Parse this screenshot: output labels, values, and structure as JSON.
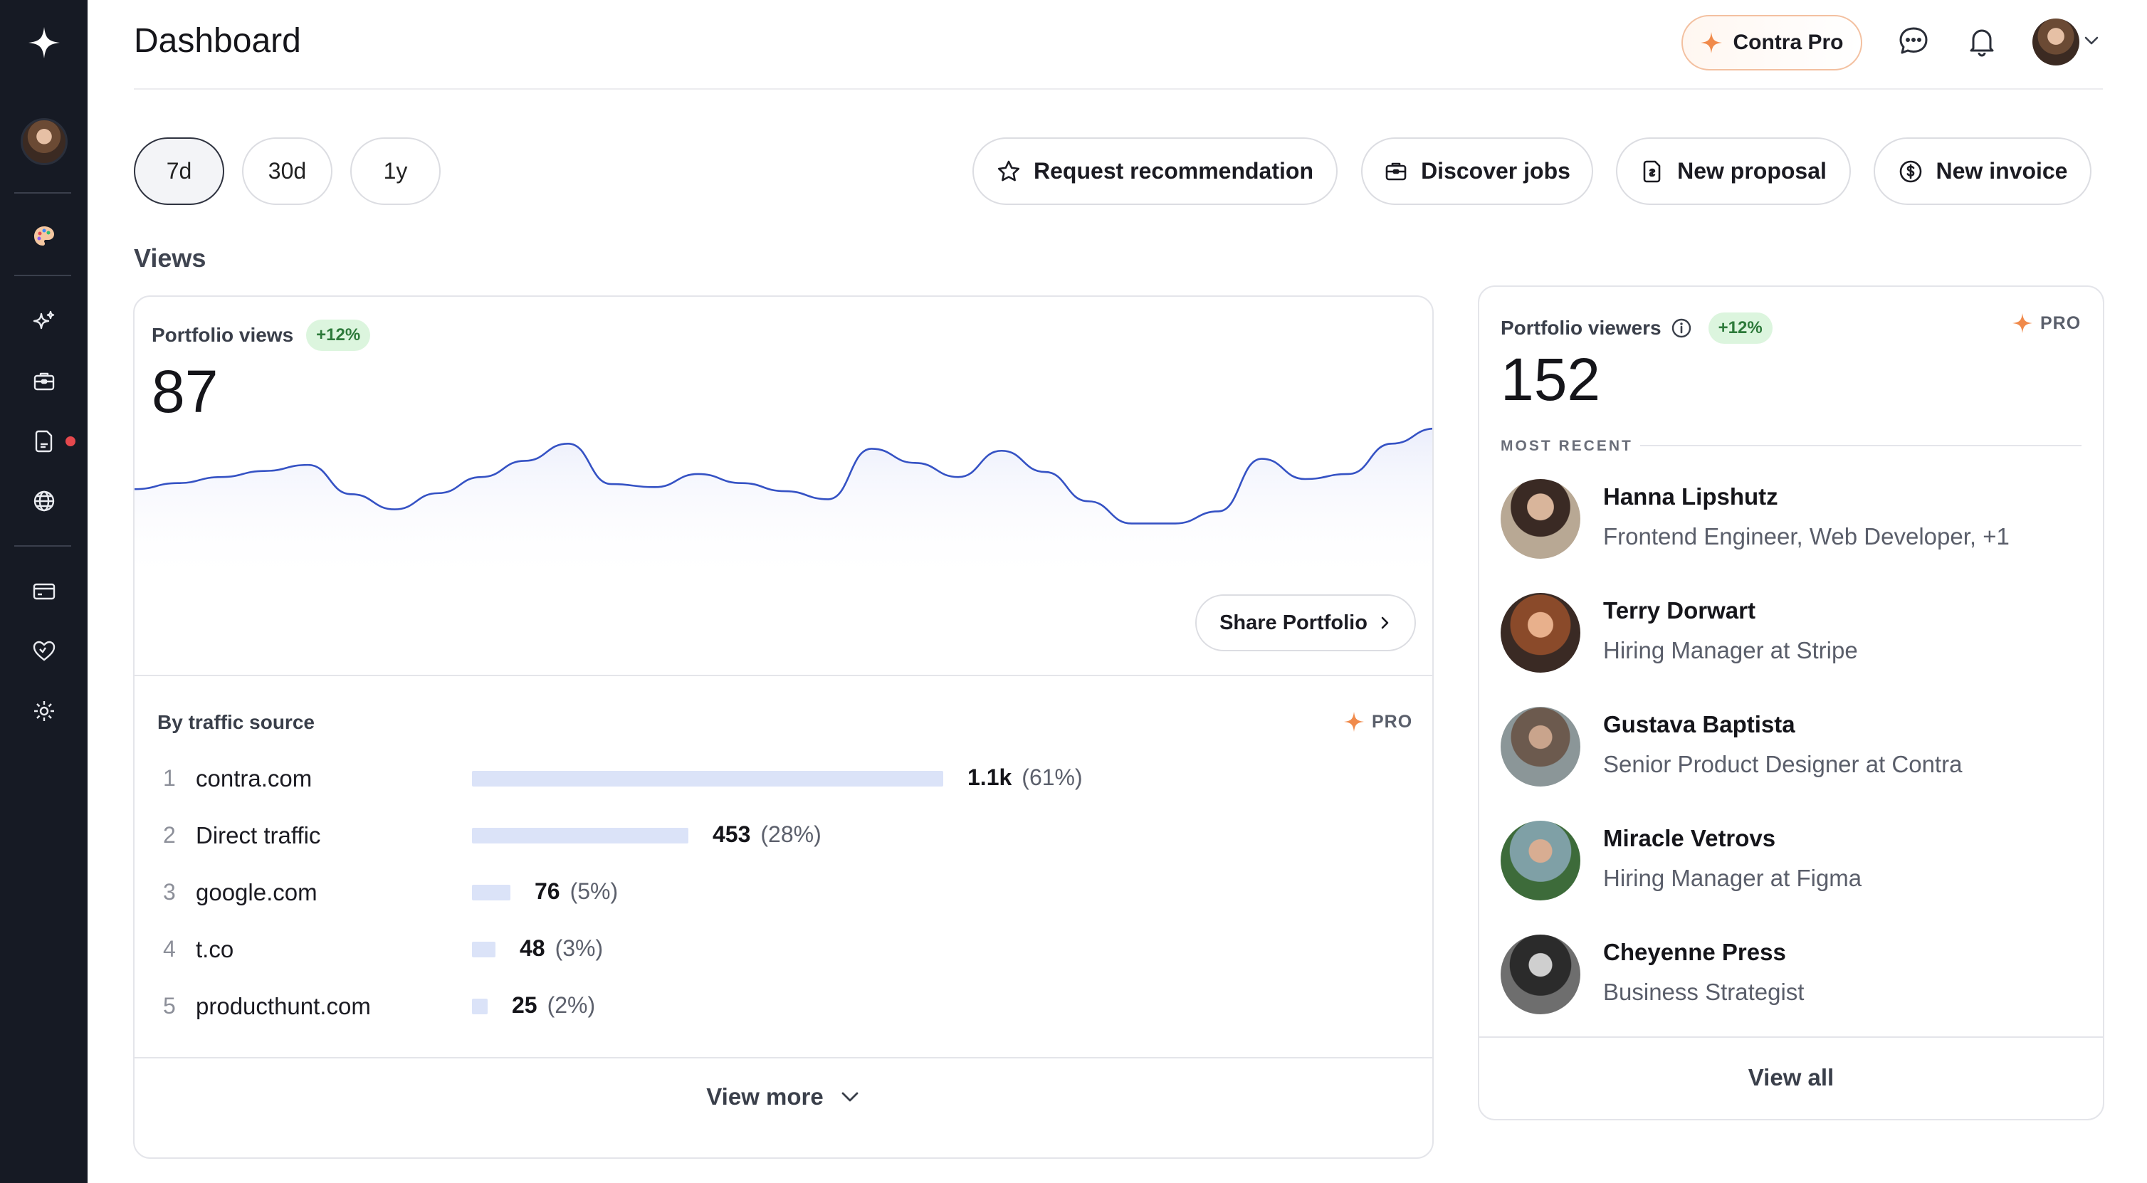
{
  "header": {
    "title": "Dashboard",
    "pro_label": "Contra Pro"
  },
  "sidebar": {
    "items": [
      {
        "icon": "contra-logo-icon"
      },
      {
        "icon": "avatar"
      },
      {
        "icon": "palette-icon"
      },
      {
        "icon": "sparkle-icon"
      },
      {
        "icon": "briefcase-icon"
      },
      {
        "icon": "document-icon",
        "notification": true
      },
      {
        "icon": "globe-icon"
      },
      {
        "icon": "card-icon"
      },
      {
        "icon": "heart-icon"
      },
      {
        "icon": "gear-icon"
      }
    ]
  },
  "ranges": [
    "7d",
    "30d",
    "1y"
  ],
  "selected_range": "7d",
  "actions": {
    "request_recommendation": "Request recommendation",
    "discover_jobs": "Discover jobs",
    "new_proposal": "New proposal",
    "new_invoice": "New invoice"
  },
  "views": {
    "section_title": "Views",
    "portfolio_views_label": "Portfolio views",
    "portfolio_views_change": "+12%",
    "portfolio_views_value": "87",
    "share_label": "Share Portfolio",
    "traffic_title": "By traffic source",
    "pro_tag": "PRO",
    "view_more": "View more",
    "traffic": [
      {
        "rank": "1",
        "source": "contra.com",
        "value": "1.1k",
        "pct": "(61%)",
        "share": 0.61
      },
      {
        "rank": "2",
        "source": "Direct traffic",
        "value": "453",
        "pct": "(28%)",
        "share": 0.28
      },
      {
        "rank": "3",
        "source": "google.com",
        "value": "76",
        "pct": "(5%)",
        "share": 0.05
      },
      {
        "rank": "4",
        "source": "t.co",
        "value": "48",
        "pct": "(3%)",
        "share": 0.03
      },
      {
        "rank": "5",
        "source": "producthunt.com",
        "value": "25",
        "pct": "(2%)",
        "share": 0.02
      }
    ]
  },
  "chart_data": {
    "type": "line",
    "series": [
      {
        "values": [
          40,
          46,
          52,
          58,
          64,
          35,
          20,
          36,
          52,
          68,
          85,
          45,
          42,
          55,
          46,
          38,
          30,
          80,
          66,
          52,
          78,
          57,
          28,
          6,
          6,
          18,
          70,
          50,
          55,
          85,
          100
        ]
      }
    ],
    "color": "#3552c4"
  },
  "viewers": {
    "label": "Portfolio viewers",
    "change": "+12%",
    "pro_tag": "PRO",
    "value": "152",
    "most_recent": "MOST RECENT",
    "view_all": "View all",
    "people": [
      {
        "name": "Hanna Lipshutz",
        "role": "Frontend Engineer, Web Developer, +1"
      },
      {
        "name": "Terry Dorwart",
        "role": "Hiring Manager at Stripe"
      },
      {
        "name": "Gustava Baptista",
        "role": "Senior Product Designer at Contra"
      },
      {
        "name": "Miracle Vetrovs",
        "role": "Hiring Manager at Figma"
      },
      {
        "name": "Cheyenne Press",
        "role": "Business Strategist"
      }
    ]
  },
  "colors": {
    "sidebar": "#161a24",
    "accent_line": "#3552c4",
    "badge_bg": "#dcf5de",
    "badge_text": "#2d7a3a",
    "pro_orange": "#f08a4b",
    "notification": "#e5484d"
  }
}
